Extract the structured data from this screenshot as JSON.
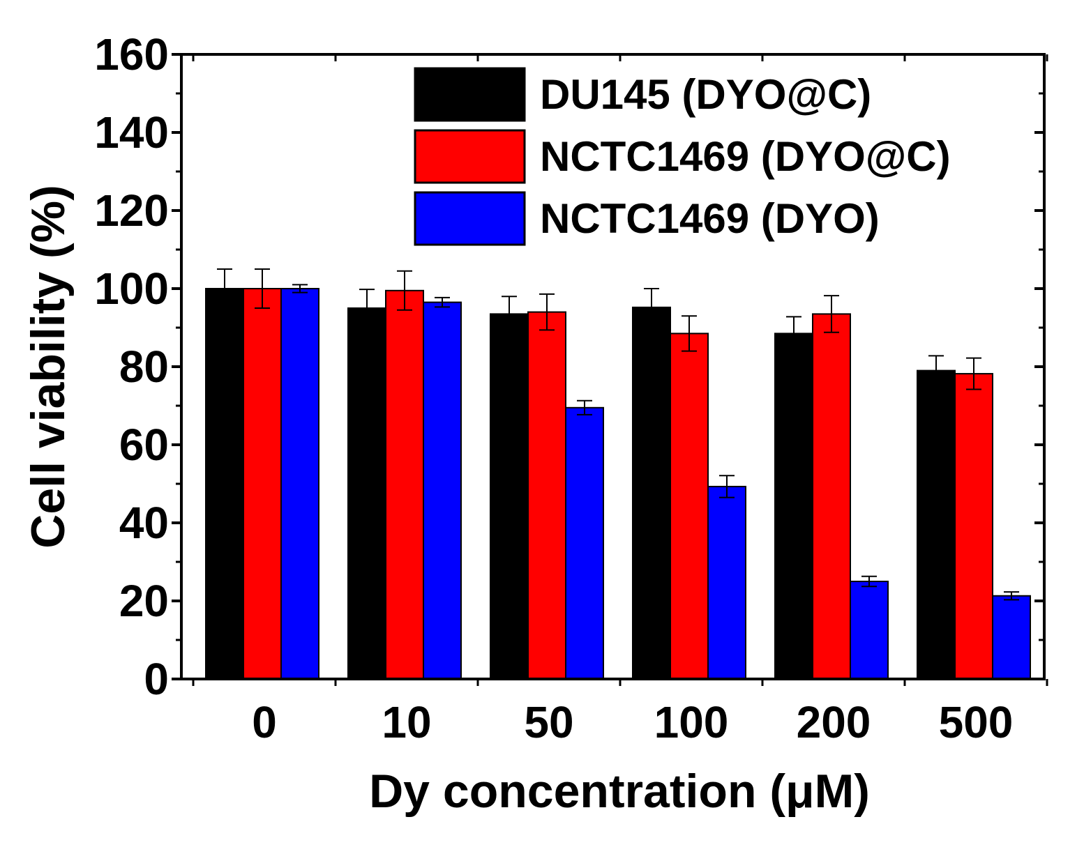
{
  "chart_data": {
    "type": "bar",
    "title": "",
    "xlabel": "Dy concentration (μM)",
    "ylabel": "Cell viability (%)",
    "ylim": [
      0,
      160
    ],
    "yticks": [
      0,
      20,
      40,
      60,
      80,
      100,
      120,
      140,
      160
    ],
    "categories": [
      "0",
      "10",
      "50",
      "100",
      "200",
      "500"
    ],
    "series": [
      {
        "name": "DU145 (DYO@C)",
        "color": "#000000",
        "values": [
          100,
          95,
          93.5,
          95.2,
          88.5,
          79
        ],
        "errors": [
          5,
          4.8,
          4.5,
          4.8,
          4.3,
          3.8
        ]
      },
      {
        "name": "NCTC1469 (DYO@C)",
        "color": "#ff0000",
        "values": [
          100,
          99.5,
          94,
          88.5,
          93.5,
          78.2
        ],
        "errors": [
          5,
          5,
          4.6,
          4.5,
          4.7,
          4
        ]
      },
      {
        "name": "NCTC1469 (DYO)",
        "color": "#0000ff",
        "values": [
          100,
          96.5,
          69.5,
          49.3,
          25,
          21.3
        ],
        "errors": [
          1,
          1.2,
          1.8,
          2.8,
          1.3,
          1
        ]
      }
    ],
    "legend_position": "top-right",
    "grid": false
  }
}
